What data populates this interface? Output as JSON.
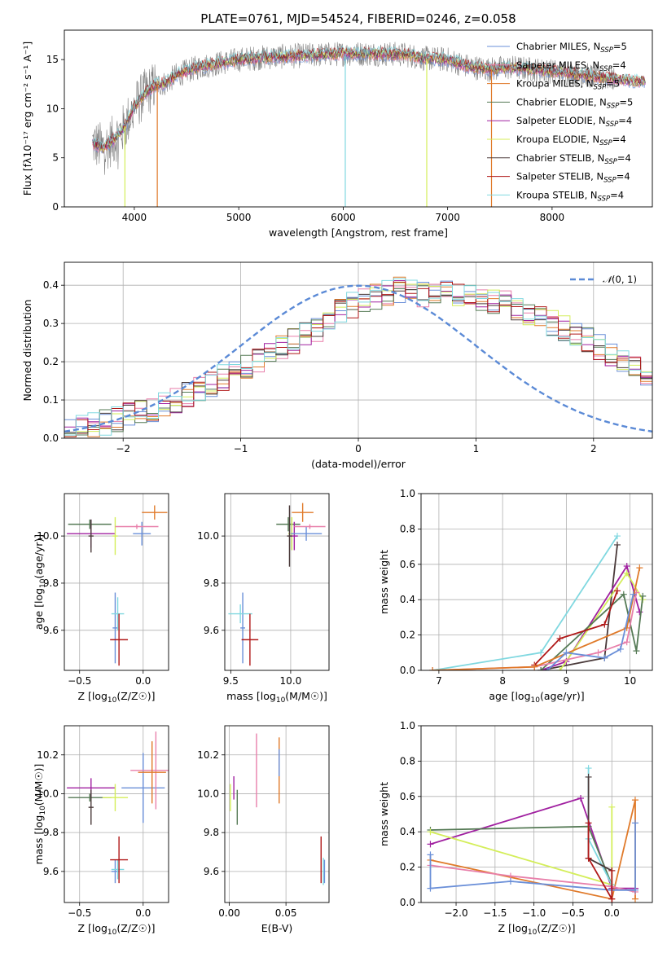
{
  "figure": {
    "title": "PLATE=0761, MJD=54524, FIBERID=0246, z=0.058"
  },
  "colors": {
    "chabrier_miles": "#6a8fd8",
    "salpeter_miles": "#e87faa",
    "kroupa_miles": "#e07a2a",
    "chabrier_elodie": "#557a55",
    "salpeter_elodie": "#a020a0",
    "kroupa_elodie": "#d4ee5a",
    "chabrier_stelib": "#4a3a3a",
    "salpeter_stelib": "#b01818",
    "kroupa_stelib": "#80d8e0",
    "data": "#808080",
    "normal": "#5b8ad6",
    "grid": "#b0b0b0"
  },
  "legend_entries": [
    {
      "pre": "Chabrier MILES, N",
      "sub": "SSP",
      "post": "=5",
      "color_key": "chabrier_miles"
    },
    {
      "pre": "Salpeter MILES, N",
      "sub": "SSP",
      "post": "=4",
      "color_key": "salpeter_miles"
    },
    {
      "pre": "Kroupa MILES, N",
      "sub": "SSP",
      "post": "=5",
      "color_key": "kroupa_miles"
    },
    {
      "pre": "Chabrier ELODIE, N",
      "sub": "SSP",
      "post": "=5",
      "color_key": "chabrier_elodie"
    },
    {
      "pre": "Salpeter ELODIE, N",
      "sub": "SSP",
      "post": "=4",
      "color_key": "salpeter_elodie"
    },
    {
      "pre": "Kroupa ELODIE, N",
      "sub": "SSP",
      "post": "=4",
      "color_key": "kroupa_elodie"
    },
    {
      "pre": "Chabrier STELIB, N",
      "sub": "SSP",
      "post": "=4",
      "color_key": "chabrier_stelib"
    },
    {
      "pre": "Salpeter STELIB, N",
      "sub": "SSP",
      "post": "=4",
      "color_key": "salpeter_stelib"
    },
    {
      "pre": "Kroupa STELIB, N",
      "sub": "SSP",
      "post": "=4",
      "color_key": "kroupa_stelib"
    }
  ],
  "chart_data": [
    {
      "id": "spectrum",
      "type": "line",
      "xlabel": "wavelength [Angstrom, rest frame]",
      "ylabel": "Flux [fλ10⁻¹⁷ erg cm⁻² s⁻¹ A⁻¹]",
      "xlim": [
        3330,
        8960
      ],
      "ylim": [
        0,
        18
      ],
      "xticks": [
        4000,
        5000,
        6000,
        7000,
        8000
      ],
      "yticks": [
        0,
        5,
        10,
        15
      ],
      "legend_position": "right",
      "data_envelope": {
        "x": [
          3600,
          3700,
          3800,
          3900,
          4000,
          4100,
          4200,
          4300,
          4400,
          4600,
          4800,
          5000,
          5200,
          5400,
          5600,
          5800,
          6000,
          6200,
          6400,
          6600,
          6800,
          7000,
          7200,
          7400,
          7600,
          7800,
          8000,
          8200,
          8400,
          8600,
          8800
        ],
        "y": [
          6.5,
          6.0,
          6.8,
          8.0,
          10.2,
          11.5,
          12.4,
          12.6,
          13.4,
          14.2,
          14.6,
          15.0,
          15.2,
          15.3,
          15.4,
          15.5,
          15.6,
          15.6,
          15.6,
          15.5,
          15.1,
          15.0,
          14.3,
          14.0,
          14.2,
          14.0,
          13.8,
          13.6,
          13.3,
          13.0,
          12.8
        ]
      },
      "model_dips": [
        {
          "x": 3910,
          "color_key": "kroupa_elodie"
        },
        {
          "x": 4220,
          "color_key": "kroupa_miles"
        },
        {
          "x": 6020,
          "color_key": "kroupa_stelib"
        },
        {
          "x": 6800,
          "color_key": "kroupa_elodie"
        },
        {
          "x": 7420,
          "color_key": "kroupa_miles"
        }
      ]
    },
    {
      "id": "residuals",
      "type": "step-histogram",
      "xlabel": "(data-model)/error",
      "ylabel": "Normed distribution",
      "xlim": [
        -2.5,
        2.5
      ],
      "ylim": [
        0,
        0.46
      ],
      "xticks": [
        -2,
        -1,
        0,
        1,
        2
      ],
      "yticks": [
        0.0,
        0.1,
        0.2,
        0.3,
        0.4
      ],
      "bins": {
        "start": -2.5,
        "width": 0.1,
        "count": 50
      },
      "histogram_shape": [
        0.02,
        0.027,
        0.034,
        0.041,
        0.049,
        0.058,
        0.068,
        0.078,
        0.089,
        0.101,
        0.114,
        0.128,
        0.142,
        0.158,
        0.173,
        0.189,
        0.205,
        0.222,
        0.238,
        0.254,
        0.27,
        0.286,
        0.301,
        0.315,
        0.328,
        0.34,
        0.351,
        0.36,
        0.368,
        0.374,
        0.378,
        0.38,
        0.38,
        0.378,
        0.374,
        0.368,
        0.36,
        0.351,
        0.34,
        0.328,
        0.315,
        0.301,
        0.286,
        0.27,
        0.254,
        0.238,
        0.222,
        0.205,
        0.189,
        0.173
      ],
      "normal_curve": {
        "label_pre": "𝒩",
        "label_post": "(0, 1)",
        "mean": 0,
        "sigma": 1
      }
    },
    {
      "id": "age_vs_Z",
      "type": "errorbar",
      "xlabel_pre": "Z [log",
      "xlabel_sub": "10",
      "xlabel_post": "(Z/Z☉)]",
      "ylabel_pre": "age  [log",
      "ylabel_sub": "10",
      "ylabel_post": "(age/yr)]",
      "xlim": [
        -0.62,
        0.2
      ],
      "ylim": [
        9.43,
        10.18
      ],
      "xticks": [
        -0.5,
        0.0
      ],
      "yticks": [
        9.6,
        9.8,
        10.0
      ],
      "points": [
        {
          "x": -0.42,
          "y": 10.05,
          "xerr": 0.17,
          "yerr": 0.02,
          "color_key": "chabrier_elodie"
        },
        {
          "x": -0.41,
          "y": 10.01,
          "xerr": 0.19,
          "yerr": 0.06,
          "color_key": "salpeter_elodie"
        },
        {
          "x": -0.41,
          "y": 10.0,
          "xerr": 0.02,
          "yerr": 0.07,
          "color_key": "chabrier_stelib"
        },
        {
          "x": -0.22,
          "y": 10.0,
          "xerr": 0.02,
          "yerr": 0.08,
          "color_key": "kroupa_elodie"
        },
        {
          "x": -0.01,
          "y": 10.01,
          "xerr": 0.07,
          "yerr": 0.05,
          "color_key": "chabrier_miles"
        },
        {
          "x": -0.05,
          "y": 10.04,
          "xerr": 0.17,
          "yerr": 0.01,
          "color_key": "salpeter_miles"
        },
        {
          "x": 0.09,
          "y": 10.1,
          "xerr": 0.1,
          "yerr": 0.03,
          "color_key": "kroupa_miles"
        },
        {
          "x": -0.22,
          "y": 9.61,
          "xerr": 0.02,
          "yerr": 0.15,
          "color_key": "chabrier_miles"
        },
        {
          "x": -0.2,
          "y": 9.67,
          "xerr": 0.05,
          "yerr": 0.07,
          "color_key": "kroupa_stelib"
        },
        {
          "x": -0.19,
          "y": 9.56,
          "xerr": 0.07,
          "yerr": 0.11,
          "color_key": "salpeter_stelib"
        }
      ]
    },
    {
      "id": "age_vs_mass",
      "type": "errorbar",
      "xlabel_pre": "mass [log",
      "xlabel_sub": "10",
      "xlabel_post": "(M/M☉)]",
      "xlim": [
        9.45,
        10.32
      ],
      "ylim": [
        9.43,
        10.18
      ],
      "xticks": [
        9.5,
        10.0
      ],
      "yticks": [
        9.6,
        9.8,
        10.0
      ],
      "points": [
        {
          "x": 9.98,
          "y": 10.05,
          "xerr": 0.1,
          "yerr": 0.03,
          "color_key": "chabrier_elodie"
        },
        {
          "x": 10.01,
          "y": 10.01,
          "xerr": 0.03,
          "yerr": 0.07,
          "color_key": "kroupa_elodie"
        },
        {
          "x": 10.03,
          "y": 10.0,
          "xerr": 0.03,
          "yerr": 0.06,
          "color_key": "salpeter_elodie"
        },
        {
          "x": 9.99,
          "y": 10.0,
          "xerr": 0.02,
          "yerr": 0.13,
          "color_key": "chabrier_stelib"
        },
        {
          "x": 10.13,
          "y": 10.01,
          "xerr": 0.13,
          "yerr": 0.03,
          "color_key": "chabrier_miles"
        },
        {
          "x": 10.16,
          "y": 10.04,
          "xerr": 0.13,
          "yerr": 0.01,
          "color_key": "salpeter_miles"
        },
        {
          "x": 10.1,
          "y": 10.1,
          "xerr": 0.09,
          "yerr": 0.04,
          "color_key": "kroupa_miles"
        },
        {
          "x": 9.6,
          "y": 9.61,
          "xerr": 0.02,
          "yerr": 0.15,
          "color_key": "chabrier_miles"
        },
        {
          "x": 9.58,
          "y": 9.67,
          "xerr": 0.1,
          "yerr": 0.04,
          "color_key": "kroupa_stelib"
        },
        {
          "x": 9.66,
          "y": 9.56,
          "xerr": 0.07,
          "yerr": 0.11,
          "color_key": "salpeter_stelib"
        }
      ]
    },
    {
      "id": "weight_vs_age",
      "type": "line",
      "xlabel_pre": "age  [log",
      "xlabel_sub": "10",
      "xlabel_post": "(age/yr)]",
      "ylabel": "mass weight",
      "xlim": [
        6.72,
        10.35
      ],
      "ylim": [
        0,
        1.0
      ],
      "xticks": [
        7,
        8,
        9,
        10
      ],
      "yticks": [
        0.0,
        0.2,
        0.4,
        0.6,
        0.8,
        1.0
      ],
      "series": [
        {
          "color_key": "kroupa_stelib",
          "x": [
            6.9,
            8.6,
            9.8
          ],
          "y": [
            0.0,
            0.1,
            0.76
          ]
        },
        {
          "color_key": "chabrier_stelib",
          "x": [
            8.6,
            9.6,
            9.8
          ],
          "y": [
            0.0,
            0.07,
            0.71
          ]
        },
        {
          "color_key": "salpeter_elodie",
          "x": [
            8.6,
            9.0,
            9.95,
            10.15
          ],
          "y": [
            0.0,
            0.05,
            0.59,
            0.33
          ]
        },
        {
          "color_key": "kroupa_elodie",
          "x": [
            8.9,
            9.95,
            10.2
          ],
          "y": [
            0.0,
            0.55,
            0.4
          ]
        },
        {
          "color_key": "chabrier_elodie",
          "x": [
            8.6,
            9.9,
            10.1,
            10.2
          ],
          "y": [
            0.0,
            0.43,
            0.11,
            0.42
          ]
        },
        {
          "color_key": "salpeter_stelib",
          "x": [
            8.5,
            8.9,
            9.6,
            9.8
          ],
          "y": [
            0.03,
            0.18,
            0.26,
            0.45
          ]
        },
        {
          "color_key": "salpeter_miles",
          "x": [
            6.9,
            8.5,
            9.5,
            9.95,
            10.1
          ],
          "y": [
            0.0,
            0.02,
            0.1,
            0.16,
            0.44
          ]
        },
        {
          "color_key": "kroupa_miles",
          "x": [
            6.9,
            8.5,
            9.95,
            10.15
          ],
          "y": [
            0.0,
            0.02,
            0.24,
            0.58
          ]
        },
        {
          "color_key": "chabrier_miles",
          "x": [
            8.7,
            9.0,
            9.6,
            9.85,
            10.05
          ],
          "y": [
            0.0,
            0.1,
            0.07,
            0.12,
            0.43
          ]
        }
      ]
    },
    {
      "id": "mass_vs_Z",
      "type": "errorbar",
      "xlabel_pre": "Z [log",
      "xlabel_sub": "10",
      "xlabel_post": "(Z/Z☉)]",
      "ylabel_pre": "mass [log",
      "ylabel_sub": "10",
      "ylabel_post": "(M/M☉)]",
      "xlim": [
        -0.62,
        0.2
      ],
      "ylim": [
        9.44,
        10.35
      ],
      "xticks": [
        -0.5,
        0.0
      ],
      "yticks": [
        9.6,
        9.8,
        10.0,
        10.2
      ],
      "points": [
        {
          "x": -0.42,
          "y": 9.98,
          "xerr": 0.17,
          "yerr": 0.02,
          "color_key": "chabrier_elodie"
        },
        {
          "x": -0.41,
          "y": 10.03,
          "xerr": 0.19,
          "yerr": 0.05,
          "color_key": "salpeter_elodie"
        },
        {
          "x": -0.41,
          "y": 9.93,
          "xerr": 0.02,
          "yerr": 0.09,
          "color_key": "chabrier_stelib"
        },
        {
          "x": -0.22,
          "y": 9.98,
          "xerr": 0.1,
          "yerr": 0.07,
          "color_key": "kroupa_elodie"
        },
        {
          "x": 0.0,
          "y": 10.03,
          "xerr": 0.17,
          "yerr": 0.18,
          "color_key": "chabrier_miles"
        },
        {
          "x": 0.1,
          "y": 10.12,
          "xerr": 0.2,
          "yerr": 0.2,
          "color_key": "salpeter_miles"
        },
        {
          "x": 0.07,
          "y": 10.11,
          "xerr": 0.11,
          "yerr": 0.16,
          "color_key": "kroupa_miles"
        },
        {
          "x": -0.22,
          "y": 9.6,
          "xerr": 0.03,
          "yerr": 0.06,
          "color_key": "chabrier_miles"
        },
        {
          "x": -0.2,
          "y": 9.61,
          "xerr": 0.05,
          "yerr": 0.05,
          "color_key": "kroupa_stelib"
        },
        {
          "x": -0.19,
          "y": 9.66,
          "xerr": 0.07,
          "yerr": 0.12,
          "color_key": "salpeter_stelib"
        }
      ]
    },
    {
      "id": "mass_vs_EBV",
      "type": "errorbar",
      "xlabel": "E(B-V)",
      "xlim": [
        -0.004,
        0.088
      ],
      "ylim": [
        9.44,
        10.35
      ],
      "xticks": [
        0.0,
        0.05
      ],
      "yticks": [
        9.6,
        9.8,
        10.0,
        10.2
      ],
      "points": [
        {
          "x": 0.001,
          "y": 9.98,
          "xerr": 0,
          "yerr": 0.07,
          "color_key": "kroupa_elodie"
        },
        {
          "x": 0.004,
          "y": 10.03,
          "xerr": 0,
          "yerr": 0.06,
          "color_key": "salpeter_elodie"
        },
        {
          "x": 0.007,
          "y": 9.93,
          "xerr": 0,
          "yerr": 0.09,
          "color_key": "chabrier_elodie"
        },
        {
          "x": 0.024,
          "y": 10.12,
          "xerr": 0,
          "yerr": 0.19,
          "color_key": "salpeter_miles"
        },
        {
          "x": 0.044,
          "y": 10.12,
          "xerr": 0,
          "yerr": 0.17,
          "color_key": "kroupa_miles"
        },
        {
          "x": 0.044,
          "y": 10.16,
          "xerr": 0,
          "yerr": 0.07,
          "color_key": "chabrier_miles"
        },
        {
          "x": 0.081,
          "y": 9.66,
          "xerr": 0,
          "yerr": 0.12,
          "color_key": "salpeter_stelib"
        },
        {
          "x": 0.083,
          "y": 9.6,
          "xerr": 0,
          "yerr": 0.07,
          "color_key": "kroupa_stelib"
        },
        {
          "x": 0.084,
          "y": 9.6,
          "xerr": 0,
          "yerr": 0.06,
          "color_key": "chabrier_miles"
        }
      ]
    },
    {
      "id": "weight_vs_Z",
      "type": "line",
      "xlabel_pre": "Z [log",
      "xlabel_sub": "10",
      "xlabel_post": "(Z/Z☉)]",
      "ylabel": "mass weight",
      "xlim": [
        -2.45,
        0.52
      ],
      "ylim": [
        0,
        1.0
      ],
      "xticks": [
        -2.0,
        -1.5,
        -1.0,
        -0.5,
        0.0
      ],
      "yticks": [
        0.0,
        0.2,
        0.4,
        0.6,
        0.8,
        1.0
      ],
      "series": [
        {
          "color_key": "salpeter_elodie",
          "x": [
            -2.33,
            -0.4,
            0.0,
            0.3
          ],
          "y": [
            0.33,
            0.59,
            0.08,
            0.08
          ]
        },
        {
          "color_key": "chabrier_elodie",
          "x": [
            -2.33,
            -0.3,
            0.0
          ],
          "y": [
            0.41,
            0.43,
            0.1
          ]
        },
        {
          "color_key": "kroupa_elodie",
          "x": [
            -2.33,
            0.0,
            0.0
          ],
          "y": [
            0.4,
            0.1,
            0.54
          ]
        },
        {
          "color_key": "kroupa_miles",
          "x": [
            -2.33,
            0.0,
            0.3,
            0.3
          ],
          "y": [
            0.24,
            0.02,
            0.58,
            0.02
          ]
        },
        {
          "color_key": "salpeter_miles",
          "x": [
            -2.33,
            -1.3,
            0.0,
            0.3
          ],
          "y": [
            0.21,
            0.15,
            0.09,
            0.06
          ]
        },
        {
          "color_key": "chabrier_miles",
          "x": [
            -2.33,
            -2.33,
            -1.3,
            0.0,
            0.3,
            0.3
          ],
          "y": [
            0.27,
            0.08,
            0.12,
            0.07,
            0.07,
            0.45
          ]
        },
        {
          "color_key": "kroupa_stelib",
          "x": [
            -0.3,
            -0.3,
            0.0
          ],
          "y": [
            0.76,
            0.36,
            0.1
          ]
        },
        {
          "color_key": "chabrier_stelib",
          "x": [
            -0.3,
            -0.3,
            0.0
          ],
          "y": [
            0.71,
            0.25,
            0.18
          ]
        },
        {
          "color_key": "salpeter_stelib",
          "x": [
            -0.3,
            -0.3,
            0.0,
            0.0
          ],
          "y": [
            0.45,
            0.25,
            0.02,
            0.18
          ]
        }
      ]
    }
  ]
}
